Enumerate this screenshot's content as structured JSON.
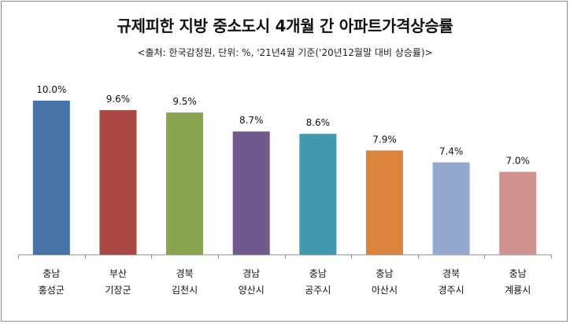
{
  "chart_data": {
    "type": "bar",
    "title": "규제피한 지방 중소도시 4개월 간 아파트가격상승률",
    "subtitle": "<출처: 한국감정원, 단위: %, '21년4월 기준('20년12월말 대비 상승률)>",
    "categories": [
      [
        "충남",
        "홍성군"
      ],
      [
        "부산",
        "기장군"
      ],
      [
        "경북",
        "김천시"
      ],
      [
        "경남",
        "양산시"
      ],
      [
        "충남",
        "공주시"
      ],
      [
        "충남",
        "아산시"
      ],
      [
        "경북",
        "경주시"
      ],
      [
        "충남",
        "계룡시"
      ]
    ],
    "values": [
      10.0,
      9.6,
      9.5,
      8.7,
      8.6,
      7.9,
      7.4,
      7.0
    ],
    "value_labels": [
      "10.0%",
      "9.6%",
      "9.5%",
      "8.7%",
      "8.6%",
      "7.9%",
      "7.4%",
      "7.0%"
    ],
    "colors": [
      "#4672a8",
      "#aa4643",
      "#89a54e",
      "#71588f",
      "#4198af",
      "#db843d",
      "#93a9cf",
      "#d19392"
    ],
    "ylim": [
      3.5,
      10.0
    ],
    "grid": false,
    "legend": "none",
    "xlabel": "",
    "ylabel": ""
  }
}
